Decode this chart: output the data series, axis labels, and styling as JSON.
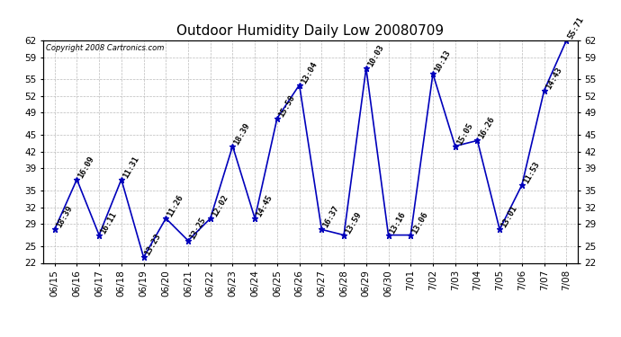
{
  "title": "Outdoor Humidity Daily Low 20080709",
  "copyright": "Copyright 2008 Cartronics.com",
  "x_labels": [
    "06/15",
    "06/16",
    "06/17",
    "06/18",
    "06/19",
    "06/20",
    "06/21",
    "06/22",
    "06/23",
    "06/24",
    "06/25",
    "06/26",
    "06/27",
    "06/28",
    "06/29",
    "06/30",
    "7/01",
    "7/02",
    "7/03",
    "7/04",
    "7/05",
    "7/06",
    "7/07",
    "7/08"
  ],
  "y_values": [
    28,
    37,
    27,
    37,
    23,
    30,
    26,
    30,
    43,
    30,
    48,
    54,
    28,
    27,
    57,
    27,
    27,
    56,
    43,
    44,
    28,
    36,
    53,
    62
  ],
  "point_labels": [
    "18:39",
    "16:09",
    "16:11",
    "11:31",
    "13:23",
    "11:26",
    "13:25",
    "12:02",
    "18:39",
    "14:45",
    "15:58",
    "13:04",
    "16:37",
    "13:59",
    "10:03",
    "13:16",
    "13:06",
    "10:13",
    "15:05",
    "16:26",
    "13:01",
    "11:53",
    "14:43",
    "55:71"
  ],
  "line_color": "#0000bb",
  "marker_color": "#0000bb",
  "background_color": "#ffffff",
  "grid_color": "#bbbbbb",
  "ylim": [
    22,
    62
  ],
  "yticks": [
    22,
    25,
    29,
    32,
    35,
    39,
    42,
    45,
    49,
    52,
    55,
    59,
    62
  ],
  "title_fontsize": 11,
  "label_fontsize": 6.5,
  "tick_fontsize": 7.5,
  "copyright_fontsize": 6
}
